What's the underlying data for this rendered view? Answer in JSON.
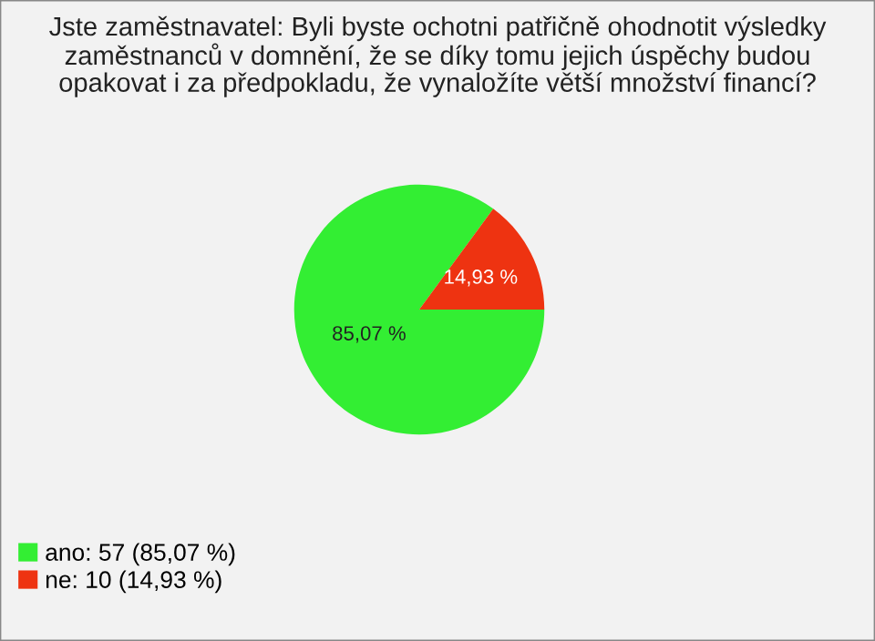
{
  "chart_data": {
    "type": "pie",
    "title": "Jste zaměstnavatel: Byli byste ochotni patřičně ohodnotit výsledky\nzaměstnanců v domnění, že se díky tomu jejich úspěchy budou\nopakovat i za předpokladu, že vynaložíte větší množství financí?",
    "categories": [
      "ano: 57 (85,07 %)",
      "ne: 10 (14,93 %)"
    ],
    "values": [
      85.07,
      14.93
    ],
    "colors": [
      "#33ee33",
      "#ee3311"
    ],
    "value_labels": [
      "85,07 %",
      "14,93 %"
    ],
    "legend": "bottom left"
  }
}
